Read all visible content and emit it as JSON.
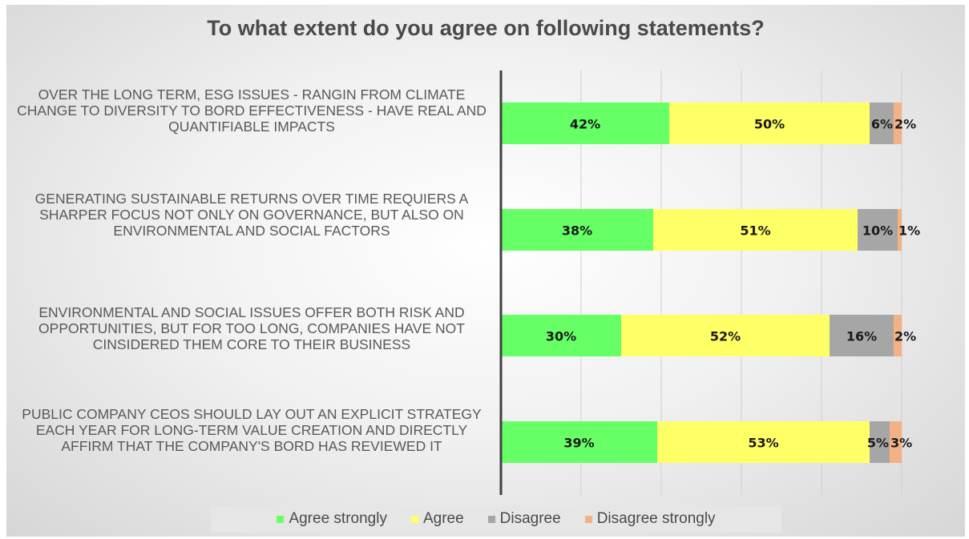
{
  "chart_data": {
    "type": "bar",
    "orientation": "horizontal",
    "stacked": true,
    "title": "To what extent do you agree on following statements?",
    "categories": [
      "OVER THE LONG TERM, ESG ISSUES - RANGIN FROM CLIMATE CHANGE TO DIVERSITY TO BORD EFFECTIVENESS - HAVE REAL AND QUANTIFIABLE IMPACTS",
      "GENERATING SUSTAINABLE RETURNS OVER TIME REQUIERS A SHARPER FOCUS NOT ONLY ON GOVERNANCE, BUT ALSO ON ENVIRONMENTAL AND SOCIAL FACTORS",
      "ENVIRONMENTAL AND SOCIAL ISSUES OFFER BOTH RISK AND OPPORTUNITIES, BUT FOR TOO LONG, COMPANIES HAVE NOT CINSIDERED THEM CORE TO THEIR BUSINESS",
      "PUBLIC COMPANY CEOS SHOULD LAY OUT AN EXPLICIT STRATEGY EACH YEAR FOR LONG-TERM VALUE CREATION AND DIRECTLY AFFIRM THAT THE COMPANY'S BORD HAS REVIEWED IT"
    ],
    "series": [
      {
        "name": "Agree strongly",
        "color": "#66ff66",
        "values": [
          42,
          38,
          30,
          39
        ],
        "labels": [
          "42%",
          "38%",
          "30%",
          "39%"
        ]
      },
      {
        "name": "Agree",
        "color": "#ffff66",
        "values": [
          50,
          51,
          52,
          53
        ],
        "labels": [
          "50%",
          "51%",
          "52%",
          "53%"
        ]
      },
      {
        "name": "Disagree",
        "color": "#a6a6a6",
        "values": [
          6,
          10,
          16,
          5
        ],
        "labels": [
          "6%",
          "10%",
          "16%",
          "5%"
        ]
      },
      {
        "name": "Disagree strongly",
        "color": "#f4b183",
        "values": [
          2,
          1,
          2,
          3
        ],
        "labels": [
          "2%",
          "1%",
          "2%",
          "3%"
        ]
      }
    ],
    "xlim": [
      0,
      100
    ],
    "grid": true,
    "legend_position": "bottom"
  }
}
